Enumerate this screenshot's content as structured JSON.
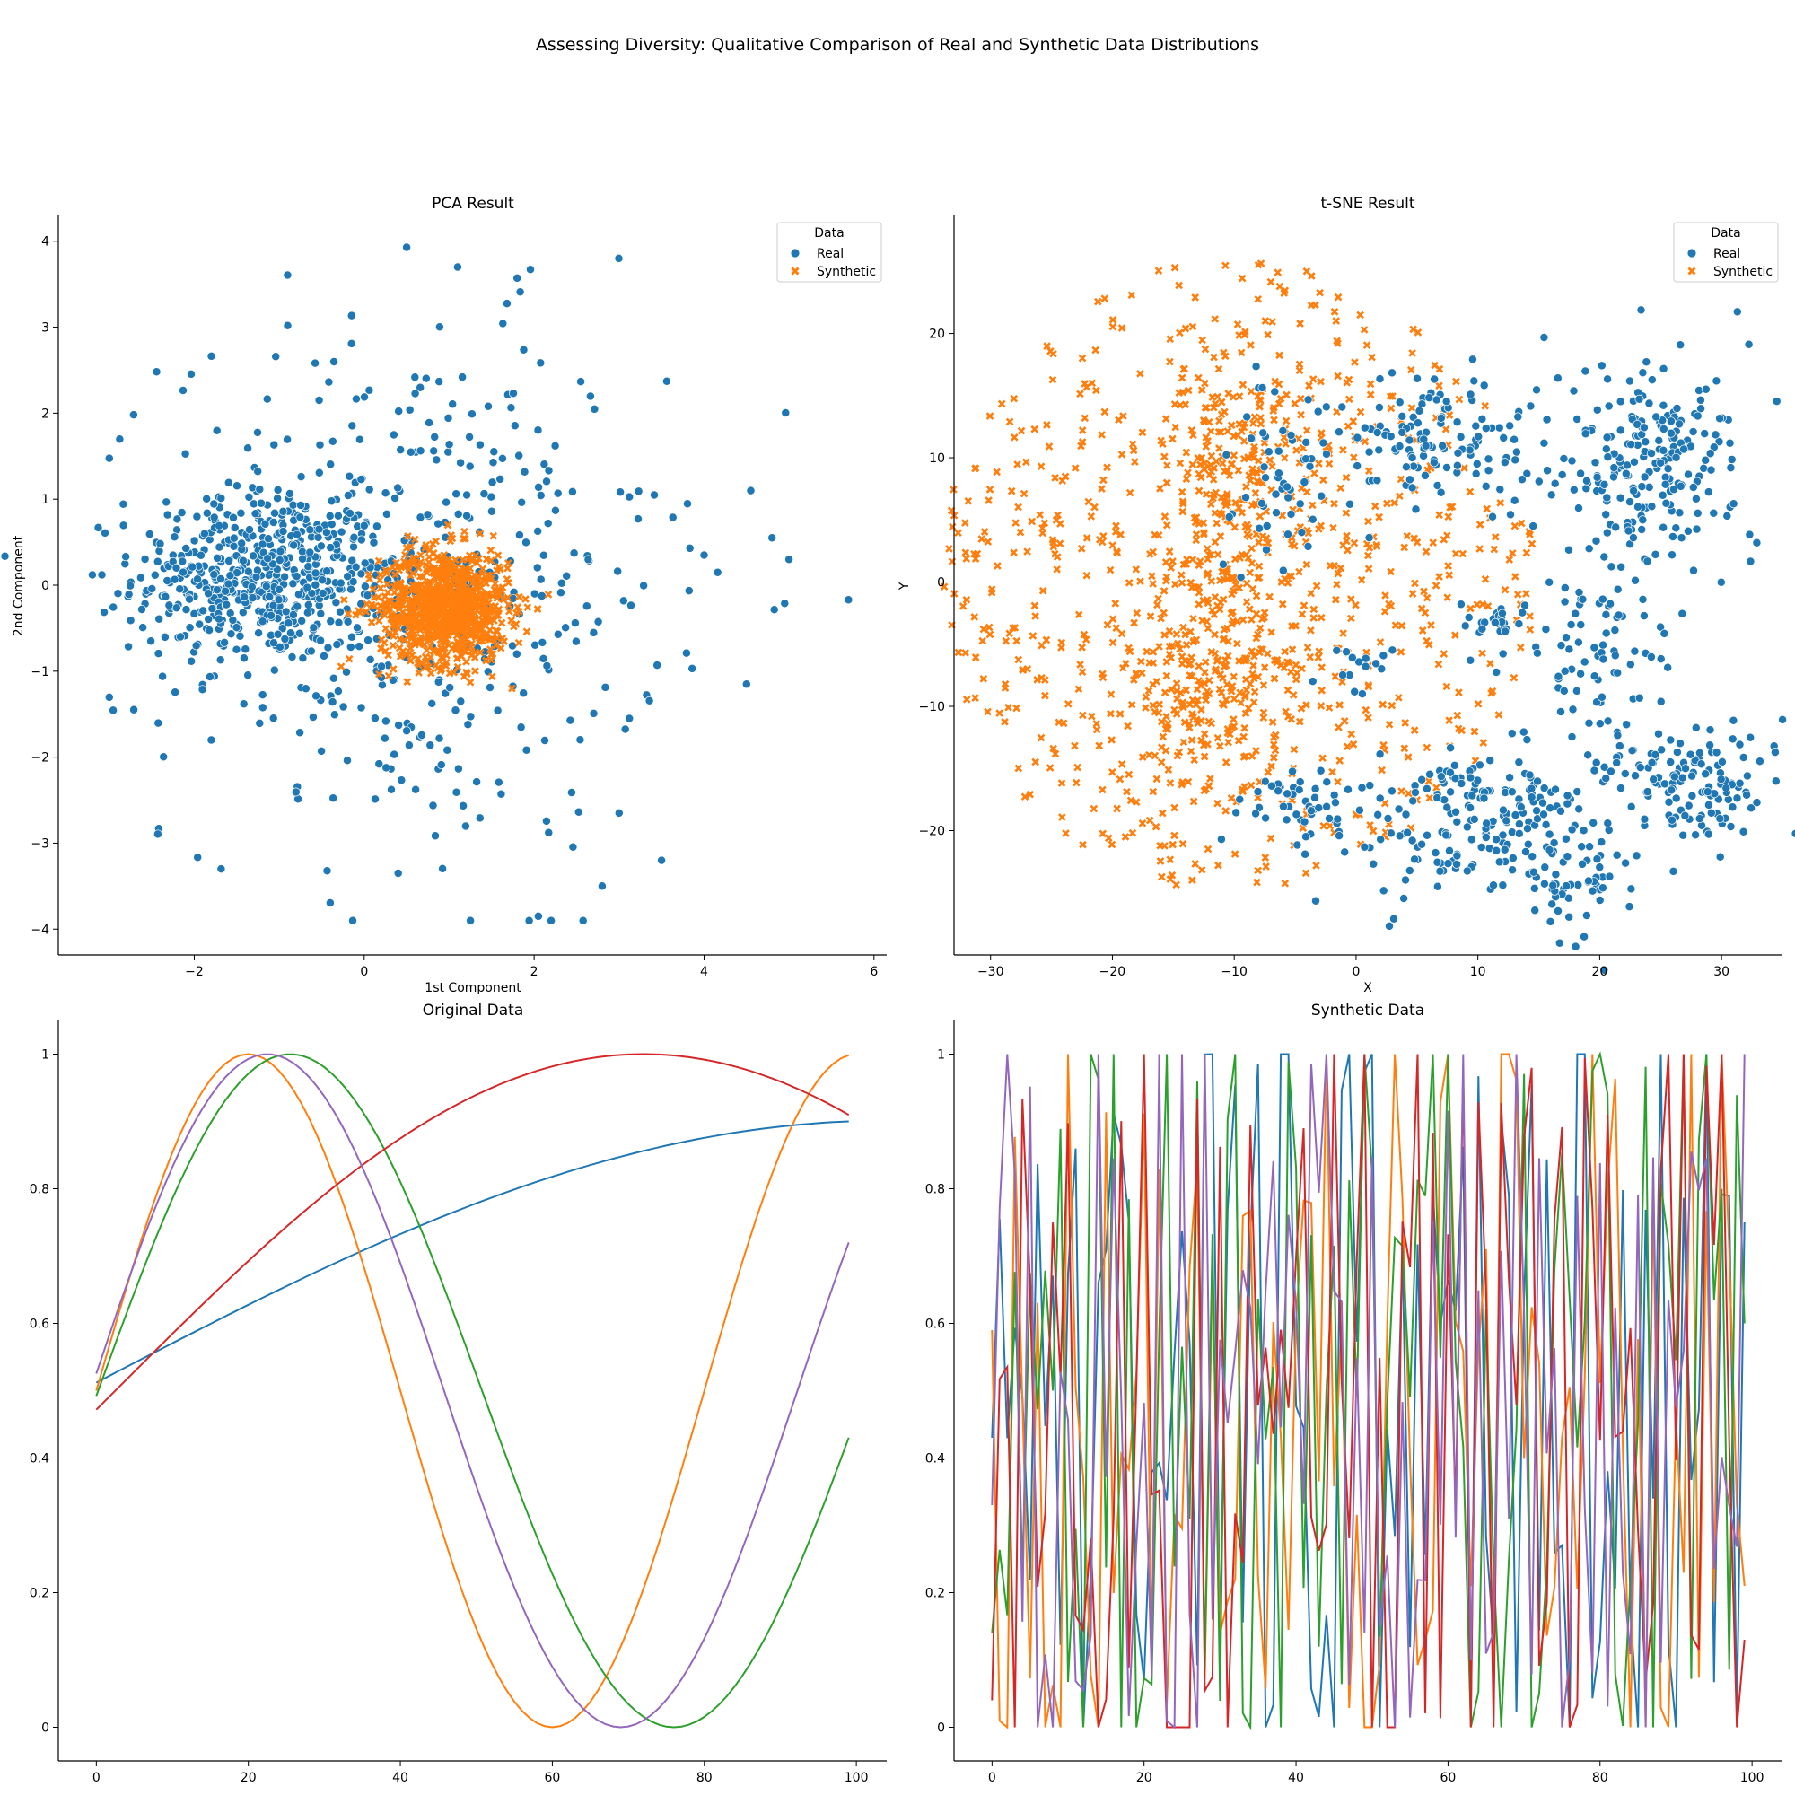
{
  "figure": {
    "suptitle": "Assessing Diversity: Qualitative Comparison of Real and Synthetic Data Distributions"
  },
  "colors": {
    "real": "#1f77b4",
    "synthetic": "#ff7f0e",
    "line_blue": "#1f77b4",
    "line_orange": "#ff7f0e",
    "line_green": "#2ca02c",
    "line_red": "#d62728",
    "line_purple": "#9467bd"
  },
  "chart_data": [
    {
      "id": "pca",
      "type": "scatter",
      "title": "PCA Result",
      "xlabel": "1st Component",
      "ylabel": "2nd Component",
      "xlim": [
        -3.6,
        6.15
      ],
      "ylim": [
        -4.3,
        4.3
      ],
      "xticks": [
        -2,
        0,
        2,
        4,
        6
      ],
      "yticks": [
        -4,
        -3,
        -2,
        -1,
        0,
        1,
        2,
        3,
        4
      ],
      "grid": false,
      "legend": {
        "title": "Data",
        "placement": "top-right",
        "entries": [
          "Real",
          "Synthetic"
        ]
      },
      "series": [
        {
          "name": "Real",
          "marker": "circle",
          "color": "#1f77b4",
          "description": "~1000 points; dense cluster near (-1.2, 0.2), sparse halo spanning x -3.2..5.7, y -3.9..3.9",
          "outliers": [
            [
              0.5,
              3.93
            ],
            [
              1.1,
              3.7
            ],
            [
              1.8,
              3.57
            ],
            [
              5.7,
              -0.17
            ],
            [
              5.0,
              0.3
            ],
            [
              4.8,
              0.55
            ],
            [
              -3.2,
              0.12
            ],
            [
              1.25,
              -3.9
            ],
            [
              2.05,
              -3.85
            ],
            [
              2.2,
              -3.9
            ],
            [
              2.8,
              -3.5
            ],
            [
              3.5,
              -3.2
            ],
            [
              4.5,
              -1.15
            ],
            [
              4.55,
              1.1
            ],
            [
              4.0,
              0.35
            ],
            [
              -1.8,
              -1.8
            ],
            [
              0.4,
              -3.35
            ],
            [
              3.0,
              -2.65
            ]
          ]
        },
        {
          "name": "Synthetic",
          "marker": "x",
          "color": "#ff7f0e",
          "description": "~1000 points; tight cluster centred near (0.95, -0.25), spread about 0.45 in x, 0.4 in y"
        }
      ]
    },
    {
      "id": "tsne",
      "type": "scatter",
      "title": "t-SNE Result",
      "xlabel": "X",
      "ylabel": "Y",
      "xlim": [
        -33,
        35
      ],
      "ylim": [
        -30,
        29.5
      ],
      "xticks": [
        -30,
        -20,
        -10,
        0,
        10,
        20,
        30
      ],
      "yticks": [
        -20,
        -10,
        0,
        10,
        20
      ],
      "grid": false,
      "legend": {
        "title": "Data",
        "placement": "top-right",
        "entries": [
          "Real",
          "Synthetic"
        ]
      },
      "series": [
        {
          "name": "Real",
          "marker": "circle",
          "color": "#1f77b4",
          "description": "~1000 points in curved strand-like clusters on the right half",
          "clusters": [
            [
              24,
              9
            ],
            [
              7,
              12
            ],
            [
              -8,
              6
            ],
            [
              -5,
              -18
            ],
            [
              6,
              -22
            ],
            [
              25,
              -17
            ],
            [
              14,
              -18
            ],
            [
              20,
              -4
            ],
            [
              17,
              -24
            ],
            [
              28,
              -19
            ]
          ]
        },
        {
          "name": "Synthetic",
          "marker": "x",
          "color": "#ff7f0e",
          "description": "~1000 points filling a disc centred near (-10, 0), radius about 24, denser at (-10, 10) and (-12, -10)"
        }
      ]
    },
    {
      "id": "original",
      "type": "line",
      "title": "Original Data",
      "xlabel": "",
      "ylabel": "",
      "xlim": [
        -5,
        104
      ],
      "ylim": [
        -0.05,
        1.05
      ],
      "xticks": [
        0,
        20,
        40,
        60,
        80,
        100
      ],
      "yticks": [
        0.0,
        0.2,
        0.4,
        0.6,
        0.8,
        1.0
      ],
      "grid": false,
      "series": [
        {
          "color": "#1f77b4",
          "function": "0.5+0.5*sin(0.00838*x+0.04)",
          "x_range": [
            0,
            99
          ]
        },
        {
          "color": "#ff7f0e",
          "function": "0.5+0.5*sin(0.0785*x+0.0)",
          "x_range": [
            0,
            99
          ]
        },
        {
          "color": "#2ca02c",
          "function": "0.5+0.5*sin(0.0619*x-0.0)",
          "x_range": [
            0,
            99
          ]
        },
        {
          "color": "#d62728",
          "function": "0.5+0.5*sin(0.0213*x+0.0767)",
          "x_range": [
            0,
            99
          ]
        },
        {
          "color": "#9467bd",
          "function": "0.5+0.5*sin(0.0681*x+0.0771)",
          "x_range": [
            0,
            99
          ]
        }
      ],
      "samples_note": "5 sine-based series over x 0..99; peaks at x≈20 (orange), 22 (purple), 25 (green), 72 (red); troughs at x≈60, 69, 76"
    },
    {
      "id": "synthetic",
      "type": "line",
      "title": "Synthetic Data",
      "xlabel": "",
      "ylabel": "",
      "xlim": [
        -5,
        104
      ],
      "ylim": [
        -0.05,
        1.05
      ],
      "xticks": [
        0,
        20,
        40,
        60,
        80,
        100
      ],
      "yticks": [
        0.0,
        0.2,
        0.4,
        0.6,
        0.8,
        1.0
      ],
      "grid": false,
      "series": [
        {
          "color": "#1f77b4",
          "description": "noisy values in [0,1], x 0..99, start 0.43, end ~0.75"
        },
        {
          "color": "#ff7f0e",
          "description": "noisy values in [0,1], x 0..99, start 0.59, end ~0.21"
        },
        {
          "color": "#2ca02c",
          "description": "noisy values in [0,1], x 0..99, start 0.14, end ~0.60"
        },
        {
          "color": "#d62728",
          "description": "noisy values in [0,1], x 0..99, start 0.04, end ~0.13"
        },
        {
          "color": "#9467bd",
          "description": "noisy values in [0,1], x 0..99, start 0.33, end ~1.0"
        }
      ]
    }
  ]
}
